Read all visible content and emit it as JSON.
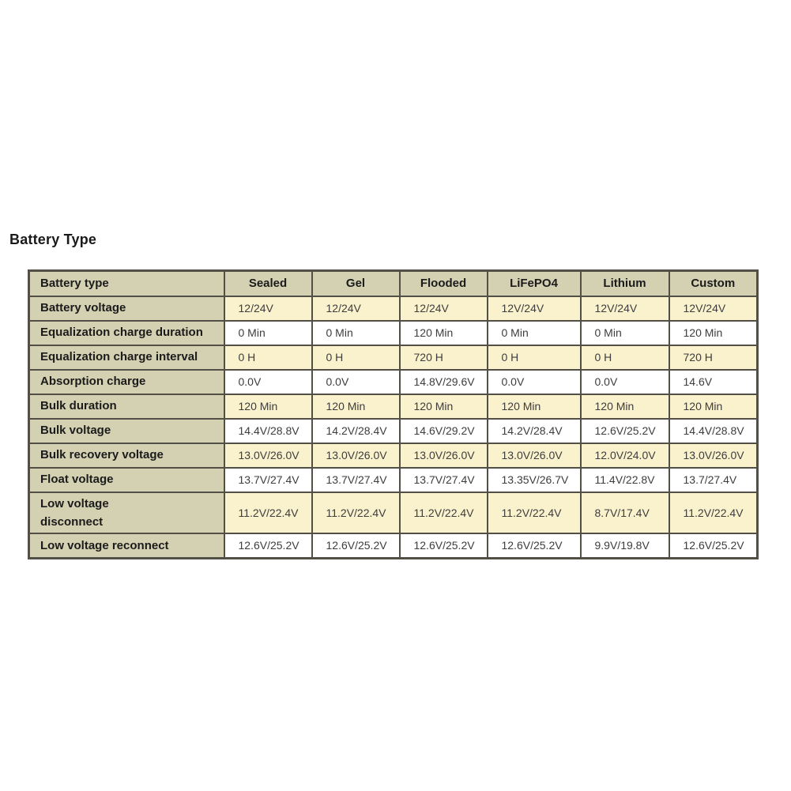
{
  "page": {
    "title": "Battery Type"
  },
  "colors": {
    "label_background": "#d4d0b2",
    "row_shade_cream": "#faf1cd",
    "row_shade_white": "#ffffff",
    "border": "#524f46",
    "label_text": "#1b1b1b",
    "value_text": "#3d3d3d"
  },
  "table": {
    "columns": [
      "Battery type",
      "Sealed",
      "Gel",
      "Flooded",
      "LiFePO4",
      "Lithium",
      "Custom"
    ],
    "rows": [
      {
        "label": "Battery voltage",
        "values": [
          "12/24V",
          "12/24V",
          "12/24V",
          "12V/24V",
          "12V/24V",
          "12V/24V"
        ]
      },
      {
        "label": "Equalization charge duration",
        "values": [
          "0 Min",
          "0 Min",
          "120 Min",
          "0 Min",
          "0 Min",
          "120 Min"
        ]
      },
      {
        "label": "Equalization charge interval",
        "values": [
          "0 H",
          "0 H",
          "720 H",
          "0 H",
          "0 H",
          "720 H"
        ]
      },
      {
        "label": "Absorption charge",
        "values": [
          "0.0V",
          "0.0V",
          "14.8V/29.6V",
          "0.0V",
          "0.0V",
          "14.6V"
        ]
      },
      {
        "label": "Bulk duration",
        "values": [
          "120 Min",
          "120 Min",
          "120 Min",
          "120 Min",
          "120 Min",
          "120 Min"
        ]
      },
      {
        "label": "Bulk voltage",
        "values": [
          "14.4V/28.8V",
          "14.2V/28.4V",
          "14.6V/29.2V",
          "14.2V/28.4V",
          "12.6V/25.2V",
          "14.4V/28.8V"
        ]
      },
      {
        "label": "Bulk recovery voltage",
        "values": [
          "13.0V/26.0V",
          "13.0V/26.0V",
          "13.0V/26.0V",
          "13.0V/26.0V",
          "12.0V/24.0V",
          "13.0V/26.0V"
        ]
      },
      {
        "label": "Float voltage",
        "values": [
          "13.7V/27.4V",
          "13.7V/27.4V",
          "13.7V/27.4V",
          "13.35V/26.7V",
          "11.4V/22.8V",
          "13.7/27.4V"
        ]
      },
      {
        "label": "Low voltage\ndisconnect",
        "values": [
          "11.2V/22.4V",
          "11.2V/22.4V",
          "11.2V/22.4V",
          "11.2V/22.4V",
          "8.7V/17.4V",
          "11.2V/22.4V"
        ]
      },
      {
        "label": "Low voltage reconnect",
        "values": [
          "12.6V/25.2V",
          "12.6V/25.2V",
          "12.6V/25.2V",
          "12.6V/25.2V",
          "9.9V/19.8V",
          "12.6V/25.2V"
        ]
      }
    ]
  }
}
